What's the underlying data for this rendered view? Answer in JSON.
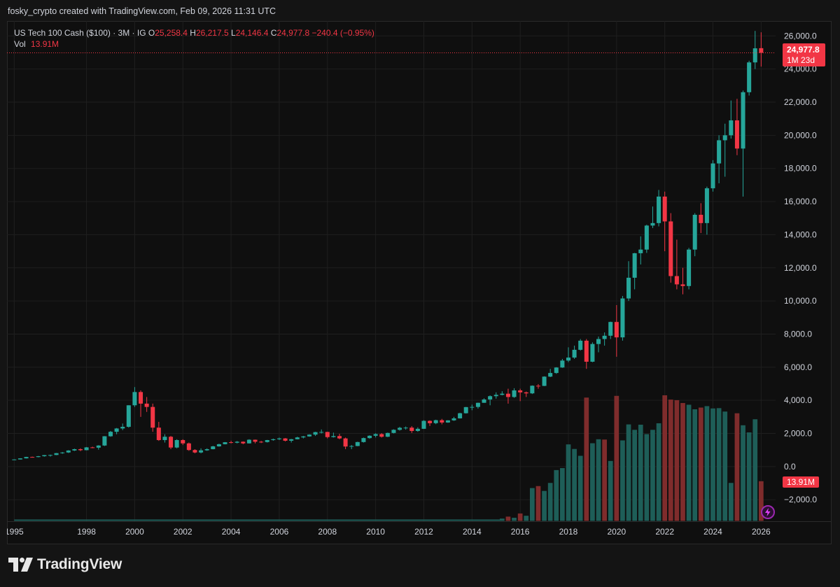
{
  "header": {
    "credit": "fosky_crypto created with TradingView.com, Feb 09, 2026 11:31 UTC"
  },
  "legend": {
    "symbol": "US Tech 100 Cash ($100) · 3M · IG",
    "o_label": "O",
    "o": "25,258.4",
    "h_label": "H",
    "h": "26,217.5",
    "l_label": "L",
    "l": "24,146.4",
    "c_label": "C",
    "c": "24,977.8",
    "change": "−240.4 (−0.95%)",
    "vol_label": "Vol",
    "vol": "13.91M"
  },
  "price_tag": {
    "price": "24,977.8",
    "countdown": "1M 23d"
  },
  "volume_tag": "13.91M",
  "brand": {
    "name": "TradingView"
  },
  "colors": {
    "up": "#26a69a",
    "down": "#f23645",
    "vol_up": "#1e5e58",
    "vol_down": "#7f2c2c",
    "background": "#0f0f0f",
    "grid": "#1f1f1f",
    "axis_text": "#d1d4dc"
  },
  "chart_data": {
    "type": "candlestick",
    "interval": "3M",
    "x_ticks": [
      "1995",
      "1998",
      "2000",
      "2002",
      "2004",
      "2006",
      "2008",
      "2010",
      "2012",
      "2014",
      "2016",
      "2018",
      "2020",
      "2022",
      "2024",
      "2026"
    ],
    "x_tick_years": [
      1995,
      1998,
      2000,
      2002,
      2004,
      2006,
      2008,
      2010,
      2012,
      2014,
      2016,
      2018,
      2020,
      2022,
      2024,
      2026
    ],
    "y_ticks": [
      "26,000.0",
      "24,000.0",
      "22,000.0",
      "20,000.0",
      "18,000.0",
      "16,000.0",
      "14,000.0",
      "12,000.0",
      "10,000.0",
      "8,000.0",
      "6,000.0",
      "4,000.0",
      "2,000.0",
      "0.0",
      "−2,000.0"
    ],
    "y_tick_values": [
      26000,
      24000,
      22000,
      20000,
      18000,
      16000,
      14000,
      12000,
      10000,
      8000,
      6000,
      4000,
      2000,
      0,
      -2000
    ],
    "ylim": [
      -3300,
      26900
    ],
    "xlim": [
      1994.7,
      2026.6
    ],
    "last_close": 24977.8,
    "candles": [
      {
        "t": 1995.0,
        "o": 410,
        "h": 440,
        "l": 395,
        "c": 430
      },
      {
        "t": 1995.25,
        "o": 430,
        "h": 500,
        "l": 425,
        "c": 495
      },
      {
        "t": 1995.5,
        "o": 495,
        "h": 590,
        "l": 490,
        "c": 580
      },
      {
        "t": 1995.75,
        "o": 580,
        "h": 600,
        "l": 550,
        "c": 575
      },
      {
        "t": 1996.0,
        "o": 575,
        "h": 640,
        "l": 560,
        "c": 625
      },
      {
        "t": 1996.25,
        "o": 625,
        "h": 700,
        "l": 600,
        "c": 690
      },
      {
        "t": 1996.5,
        "o": 690,
        "h": 720,
        "l": 600,
        "c": 700
      },
      {
        "t": 1996.75,
        "o": 700,
        "h": 820,
        "l": 690,
        "c": 810
      },
      {
        "t": 1997.0,
        "o": 810,
        "h": 880,
        "l": 770,
        "c": 850
      },
      {
        "t": 1997.25,
        "o": 850,
        "h": 990,
        "l": 820,
        "c": 970
      },
      {
        "t": 1997.5,
        "o": 970,
        "h": 1080,
        "l": 940,
        "c": 1050
      },
      {
        "t": 1997.75,
        "o": 1050,
        "h": 1100,
        "l": 930,
        "c": 990
      },
      {
        "t": 1998.0,
        "o": 990,
        "h": 1180,
        "l": 980,
        "c": 1160
      },
      {
        "t": 1998.25,
        "o": 1160,
        "h": 1200,
        "l": 1110,
        "c": 1140
      },
      {
        "t": 1998.5,
        "o": 1140,
        "h": 1290,
        "l": 1020,
        "c": 1270
      },
      {
        "t": 1998.75,
        "o": 1270,
        "h": 1840,
        "l": 1240,
        "c": 1830
      },
      {
        "t": 1999.0,
        "o": 1830,
        "h": 2150,
        "l": 1800,
        "c": 2100
      },
      {
        "t": 1999.25,
        "o": 2100,
        "h": 2330,
        "l": 1950,
        "c": 2300
      },
      {
        "t": 1999.5,
        "o": 2300,
        "h": 2600,
        "l": 2200,
        "c": 2400
      },
      {
        "t": 1999.75,
        "o": 2400,
        "h": 3700,
        "l": 2350,
        "c": 3700
      },
      {
        "t": 2000.0,
        "o": 3700,
        "h": 4800,
        "l": 3600,
        "c": 4500
      },
      {
        "t": 2000.25,
        "o": 4500,
        "h": 4600,
        "l": 3000,
        "c": 3800
      },
      {
        "t": 2000.5,
        "o": 3800,
        "h": 4200,
        "l": 3300,
        "c": 3600
      },
      {
        "t": 2000.75,
        "o": 3600,
        "h": 3800,
        "l": 2100,
        "c": 2350
      },
      {
        "t": 2001.0,
        "o": 2350,
        "h": 2700,
        "l": 1550,
        "c": 1600
      },
      {
        "t": 2001.25,
        "o": 1600,
        "h": 1950,
        "l": 1450,
        "c": 1800
      },
      {
        "t": 2001.5,
        "o": 1800,
        "h": 1850,
        "l": 1050,
        "c": 1150
      },
      {
        "t": 2001.75,
        "o": 1150,
        "h": 1650,
        "l": 1100,
        "c": 1600
      },
      {
        "t": 2002.0,
        "o": 1600,
        "h": 1650,
        "l": 1300,
        "c": 1400
      },
      {
        "t": 2002.25,
        "o": 1400,
        "h": 1450,
        "l": 950,
        "c": 1000
      },
      {
        "t": 2002.5,
        "o": 1000,
        "h": 1050,
        "l": 800,
        "c": 850
      },
      {
        "t": 2002.75,
        "o": 850,
        "h": 1100,
        "l": 800,
        "c": 980
      },
      {
        "t": 2003.0,
        "o": 980,
        "h": 1100,
        "l": 950,
        "c": 1050
      },
      {
        "t": 2003.25,
        "o": 1050,
        "h": 1250,
        "l": 1040,
        "c": 1220
      },
      {
        "t": 2003.5,
        "o": 1220,
        "h": 1380,
        "l": 1200,
        "c": 1350
      },
      {
        "t": 2003.75,
        "o": 1350,
        "h": 1480,
        "l": 1340,
        "c": 1470
      },
      {
        "t": 2004.0,
        "o": 1470,
        "h": 1560,
        "l": 1400,
        "c": 1440
      },
      {
        "t": 2004.25,
        "o": 1440,
        "h": 1540,
        "l": 1400,
        "c": 1500
      },
      {
        "t": 2004.5,
        "o": 1500,
        "h": 1520,
        "l": 1350,
        "c": 1400
      },
      {
        "t": 2004.75,
        "o": 1400,
        "h": 1650,
        "l": 1390,
        "c": 1620
      },
      {
        "t": 2005.0,
        "o": 1620,
        "h": 1630,
        "l": 1400,
        "c": 1500
      },
      {
        "t": 2005.25,
        "o": 1500,
        "h": 1550,
        "l": 1420,
        "c": 1480
      },
      {
        "t": 2005.5,
        "o": 1480,
        "h": 1610,
        "l": 1450,
        "c": 1600
      },
      {
        "t": 2005.75,
        "o": 1600,
        "h": 1690,
        "l": 1560,
        "c": 1650
      },
      {
        "t": 2006.0,
        "o": 1650,
        "h": 1750,
        "l": 1600,
        "c": 1700
      },
      {
        "t": 2006.25,
        "o": 1700,
        "h": 1720,
        "l": 1520,
        "c": 1560
      },
      {
        "t": 2006.5,
        "o": 1560,
        "h": 1670,
        "l": 1450,
        "c": 1650
      },
      {
        "t": 2006.75,
        "o": 1650,
        "h": 1800,
        "l": 1640,
        "c": 1760
      },
      {
        "t": 2007.0,
        "o": 1760,
        "h": 1850,
        "l": 1700,
        "c": 1820
      },
      {
        "t": 2007.25,
        "o": 1820,
        "h": 1950,
        "l": 1800,
        "c": 1930
      },
      {
        "t": 2007.5,
        "o": 1930,
        "h": 2100,
        "l": 1850,
        "c": 2080
      },
      {
        "t": 2007.75,
        "o": 2080,
        "h": 2240,
        "l": 2000,
        "c": 2090
      },
      {
        "t": 2008.0,
        "o": 2090,
        "h": 2100,
        "l": 1700,
        "c": 1780
      },
      {
        "t": 2008.25,
        "o": 1780,
        "h": 2050,
        "l": 1750,
        "c": 1840
      },
      {
        "t": 2008.5,
        "o": 1840,
        "h": 1980,
        "l": 1650,
        "c": 1700
      },
      {
        "t": 2008.75,
        "o": 1700,
        "h": 1750,
        "l": 1050,
        "c": 1210
      },
      {
        "t": 2009.0,
        "o": 1210,
        "h": 1300,
        "l": 1050,
        "c": 1240
      },
      {
        "t": 2009.25,
        "o": 1240,
        "h": 1500,
        "l": 1230,
        "c": 1480
      },
      {
        "t": 2009.5,
        "o": 1480,
        "h": 1750,
        "l": 1450,
        "c": 1720
      },
      {
        "t": 2009.75,
        "o": 1720,
        "h": 1890,
        "l": 1680,
        "c": 1860
      },
      {
        "t": 2010.0,
        "o": 1860,
        "h": 2010,
        "l": 1760,
        "c": 1960
      },
      {
        "t": 2010.25,
        "o": 1960,
        "h": 2020,
        "l": 1750,
        "c": 1800
      },
      {
        "t": 2010.5,
        "o": 1800,
        "h": 2050,
        "l": 1780,
        "c": 2030
      },
      {
        "t": 2010.75,
        "o": 2030,
        "h": 2250,
        "l": 2000,
        "c": 2220
      },
      {
        "t": 2011.0,
        "o": 2220,
        "h": 2400,
        "l": 2170,
        "c": 2340
      },
      {
        "t": 2011.25,
        "o": 2340,
        "h": 2420,
        "l": 2230,
        "c": 2350
      },
      {
        "t": 2011.5,
        "o": 2350,
        "h": 2440,
        "l": 2030,
        "c": 2150
      },
      {
        "t": 2011.75,
        "o": 2150,
        "h": 2370,
        "l": 2100,
        "c": 2280
      },
      {
        "t": 2012.0,
        "o": 2280,
        "h": 2800,
        "l": 2270,
        "c": 2760
      },
      {
        "t": 2012.25,
        "o": 2760,
        "h": 2790,
        "l": 2450,
        "c": 2620
      },
      {
        "t": 2012.5,
        "o": 2620,
        "h": 2830,
        "l": 2560,
        "c": 2800
      },
      {
        "t": 2012.75,
        "o": 2800,
        "h": 2880,
        "l": 2550,
        "c": 2660
      },
      {
        "t": 2013.0,
        "o": 2660,
        "h": 2800,
        "l": 2640,
        "c": 2790
      },
      {
        "t": 2013.25,
        "o": 2790,
        "h": 3000,
        "l": 2760,
        "c": 2910
      },
      {
        "t": 2013.5,
        "o": 2910,
        "h": 3250,
        "l": 2900,
        "c": 3220
      },
      {
        "t": 2013.75,
        "o": 3220,
        "h": 3600,
        "l": 3200,
        "c": 3590
      },
      {
        "t": 2014.0,
        "o": 3590,
        "h": 3740,
        "l": 3400,
        "c": 3600
      },
      {
        "t": 2014.25,
        "o": 3600,
        "h": 3860,
        "l": 3500,
        "c": 3850
      },
      {
        "t": 2014.5,
        "o": 3850,
        "h": 4120,
        "l": 3850,
        "c": 4050
      },
      {
        "t": 2014.75,
        "o": 4050,
        "h": 4300,
        "l": 3700,
        "c": 4250
      },
      {
        "t": 2015.0,
        "o": 4250,
        "h": 4480,
        "l": 4100,
        "c": 4330
      },
      {
        "t": 2015.25,
        "o": 4330,
        "h": 4550,
        "l": 4300,
        "c": 4400
      },
      {
        "t": 2015.5,
        "o": 4400,
        "h": 4700,
        "l": 3800,
        "c": 4200
      },
      {
        "t": 2015.75,
        "o": 4200,
        "h": 4730,
        "l": 4150,
        "c": 4600
      },
      {
        "t": 2016.0,
        "o": 4600,
        "h": 4700,
        "l": 3950,
        "c": 4480
      },
      {
        "t": 2016.25,
        "o": 4480,
        "h": 4530,
        "l": 4200,
        "c": 4420
      },
      {
        "t": 2016.5,
        "o": 4420,
        "h": 4900,
        "l": 4380,
        "c": 4880
      },
      {
        "t": 2016.75,
        "o": 4880,
        "h": 4980,
        "l": 4700,
        "c": 4870
      },
      {
        "t": 2017.0,
        "o": 4870,
        "h": 5450,
        "l": 4860,
        "c": 5430
      },
      {
        "t": 2017.25,
        "o": 5430,
        "h": 5900,
        "l": 5400,
        "c": 5650
      },
      {
        "t": 2017.5,
        "o": 5650,
        "h": 6000,
        "l": 5600,
        "c": 5980
      },
      {
        "t": 2017.75,
        "o": 5980,
        "h": 6500,
        "l": 5960,
        "c": 6400
      },
      {
        "t": 2018.0,
        "o": 6400,
        "h": 7200,
        "l": 6300,
        "c": 6580
      },
      {
        "t": 2018.25,
        "o": 6580,
        "h": 7300,
        "l": 6500,
        "c": 7050
      },
      {
        "t": 2018.5,
        "o": 7050,
        "h": 7700,
        "l": 7000,
        "c": 7600
      },
      {
        "t": 2018.75,
        "o": 7600,
        "h": 7700,
        "l": 5900,
        "c": 6330
      },
      {
        "t": 2019.0,
        "o": 6330,
        "h": 7500,
        "l": 6300,
        "c": 7400
      },
      {
        "t": 2019.25,
        "o": 7400,
        "h": 7850,
        "l": 6900,
        "c": 7700
      },
      {
        "t": 2019.5,
        "o": 7700,
        "h": 8100,
        "l": 7300,
        "c": 7900
      },
      {
        "t": 2019.75,
        "o": 7900,
        "h": 8750,
        "l": 7700,
        "c": 8730
      },
      {
        "t": 2020.0,
        "o": 8730,
        "h": 9750,
        "l": 6630,
        "c": 7800
      },
      {
        "t": 2020.25,
        "o": 7800,
        "h": 10300,
        "l": 7600,
        "c": 10150
      },
      {
        "t": 2020.5,
        "o": 10150,
        "h": 12400,
        "l": 10000,
        "c": 11400
      },
      {
        "t": 2020.75,
        "o": 11400,
        "h": 12900,
        "l": 10700,
        "c": 12880
      },
      {
        "t": 2021.0,
        "o": 12880,
        "h": 13900,
        "l": 12200,
        "c": 13100
      },
      {
        "t": 2021.25,
        "o": 13100,
        "h": 14600,
        "l": 12900,
        "c": 14550
      },
      {
        "t": 2021.5,
        "o": 14550,
        "h": 15700,
        "l": 14400,
        "c": 14700
      },
      {
        "t": 2021.75,
        "o": 14700,
        "h": 16700,
        "l": 14500,
        "c": 16300
      },
      {
        "t": 2022.0,
        "o": 16300,
        "h": 16600,
        "l": 13000,
        "c": 14800
      },
      {
        "t": 2022.25,
        "o": 14800,
        "h": 15300,
        "l": 11100,
        "c": 11500
      },
      {
        "t": 2022.5,
        "o": 11500,
        "h": 13700,
        "l": 10700,
        "c": 11000
      },
      {
        "t": 2022.75,
        "o": 11000,
        "h": 12000,
        "l": 10400,
        "c": 10900
      },
      {
        "t": 2023.0,
        "o": 10900,
        "h": 13200,
        "l": 10700,
        "c": 13100
      },
      {
        "t": 2023.25,
        "o": 13100,
        "h": 15300,
        "l": 12700,
        "c": 15200
      },
      {
        "t": 2023.5,
        "o": 15200,
        "h": 15900,
        "l": 14100,
        "c": 14700
      },
      {
        "t": 2023.75,
        "o": 14700,
        "h": 16900,
        "l": 14000,
        "c": 16800
      },
      {
        "t": 2024.0,
        "o": 16800,
        "h": 18500,
        "l": 16600,
        "c": 18300
      },
      {
        "t": 2024.25,
        "o": 18300,
        "h": 20000,
        "l": 17100,
        "c": 19700
      },
      {
        "t": 2024.5,
        "o": 19700,
        "h": 20700,
        "l": 17500,
        "c": 20000
      },
      {
        "t": 2024.75,
        "o": 20000,
        "h": 22100,
        "l": 19800,
        "c": 20900
      },
      {
        "t": 2025.0,
        "o": 20900,
        "h": 22200,
        "l": 18800,
        "c": 19200
      },
      {
        "t": 2025.25,
        "o": 19200,
        "h": 22700,
        "l": 16300,
        "c": 22600
      },
      {
        "t": 2025.5,
        "o": 22600,
        "h": 24500,
        "l": 22400,
        "c": 24400
      },
      {
        "t": 2025.75,
        "o": 24400,
        "h": 26300,
        "l": 24000,
        "c": 25250
      },
      {
        "t": 2026.0,
        "o": 25258.4,
        "h": 26217.5,
        "l": 24146.4,
        "c": 24977.8
      }
    ],
    "volume": [
      {
        "t": 2015.25,
        "v": 80,
        "up": true
      },
      {
        "t": 2015.5,
        "v": 150,
        "up": false
      },
      {
        "t": 2015.75,
        "v": 110,
        "up": true
      },
      {
        "t": 2016.0,
        "v": 260,
        "up": false
      },
      {
        "t": 2016.25,
        "v": 180,
        "up": true
      },
      {
        "t": 2016.5,
        "v": 1150,
        "up": true
      },
      {
        "t": 2016.75,
        "v": 1220,
        "up": false
      },
      {
        "t": 2017.0,
        "v": 1050,
        "up": true
      },
      {
        "t": 2017.25,
        "v": 1330,
        "up": true
      },
      {
        "t": 2017.5,
        "v": 1780,
        "up": true
      },
      {
        "t": 2017.75,
        "v": 1850,
        "up": true
      },
      {
        "t": 2018.0,
        "v": 2680,
        "up": true
      },
      {
        "t": 2018.25,
        "v": 2520,
        "up": true
      },
      {
        "t": 2018.5,
        "v": 2280,
        "up": true
      },
      {
        "t": 2018.75,
        "v": 4320,
        "up": false
      },
      {
        "t": 2019.0,
        "v": 2720,
        "up": true
      },
      {
        "t": 2019.25,
        "v": 2860,
        "up": true
      },
      {
        "t": 2019.5,
        "v": 2850,
        "up": false
      },
      {
        "t": 2019.75,
        "v": 2100,
        "up": true
      },
      {
        "t": 2020.0,
        "v": 4380,
        "up": false
      },
      {
        "t": 2020.25,
        "v": 2820,
        "up": true
      },
      {
        "t": 2020.5,
        "v": 3380,
        "up": true
      },
      {
        "t": 2020.75,
        "v": 3190,
        "up": true
      },
      {
        "t": 2021.0,
        "v": 3370,
        "up": true
      },
      {
        "t": 2021.25,
        "v": 3040,
        "up": true
      },
      {
        "t": 2021.5,
        "v": 3190,
        "up": true
      },
      {
        "t": 2021.75,
        "v": 3420,
        "up": true
      },
      {
        "t": 2022.0,
        "v": 4400,
        "up": false
      },
      {
        "t": 2022.25,
        "v": 4250,
        "up": false
      },
      {
        "t": 2022.5,
        "v": 4230,
        "up": false
      },
      {
        "t": 2022.75,
        "v": 4130,
        "up": false
      },
      {
        "t": 2023.0,
        "v": 4070,
        "up": true
      },
      {
        "t": 2023.25,
        "v": 3910,
        "up": true
      },
      {
        "t": 2023.5,
        "v": 3970,
        "up": false
      },
      {
        "t": 2023.75,
        "v": 4020,
        "up": true
      },
      {
        "t": 2024.0,
        "v": 3940,
        "up": true
      },
      {
        "t": 2024.25,
        "v": 3950,
        "up": true
      },
      {
        "t": 2024.5,
        "v": 3830,
        "up": true
      },
      {
        "t": 2024.75,
        "v": 1330,
        "up": true
      },
      {
        "t": 2025.0,
        "v": 3770,
        "up": false
      },
      {
        "t": 2025.25,
        "v": 3350,
        "up": true
      },
      {
        "t": 2025.5,
        "v": 3100,
        "up": true
      },
      {
        "t": 2025.75,
        "v": 3560,
        "up": true
      },
      {
        "t": 2026.0,
        "v": 1390,
        "up": false
      }
    ]
  }
}
